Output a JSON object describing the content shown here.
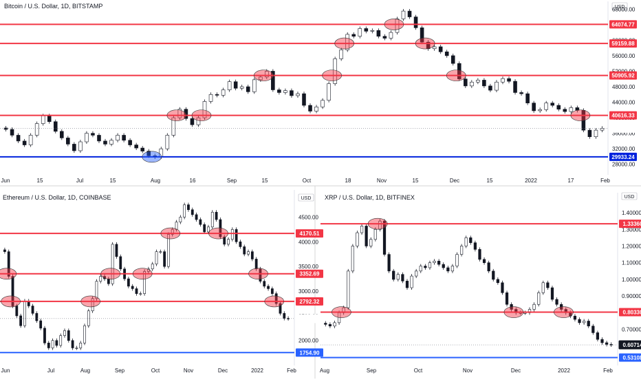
{
  "chart_data": [
    {
      "type": "candlestick",
      "title": "Bitcoin / U.S. Dollar, 1D, BITSTAMP",
      "currency": "USD",
      "ylim": [
        26000,
        70000
      ],
      "y_ticks": [
        "68000.00",
        "64000.00",
        "60000.00",
        "56000.00",
        "52000.00",
        "48000.00",
        "44000.00",
        "40000.00",
        "36000.00",
        "32000.00",
        "28000.00"
      ],
      "x_ticks": [
        "Jun",
        "15",
        "Jul",
        "15",
        "Aug",
        "16",
        "Sep",
        "15",
        "Oct",
        "18",
        "Nov",
        "15",
        "Dec",
        "15",
        "2022",
        "17",
        "Feb"
      ],
      "last_price": "37285.98",
      "levels": [
        {
          "value": "64074.77",
          "color": "#f23645"
        },
        {
          "value": "59159.88",
          "color": "#f23645"
        },
        {
          "value": "50905.92",
          "color": "#f23645"
        },
        {
          "value": "40616.33",
          "color": "#f23645"
        },
        {
          "value": "29933.24",
          "color": "#0022dd"
        }
      ],
      "close_series": [
        37000,
        35500,
        34000,
        33000,
        35500,
        38500,
        40500,
        39000,
        36500,
        34800,
        33200,
        31500,
        33800,
        36000,
        35500,
        34000,
        33200,
        34200,
        35500,
        34200,
        33000,
        32200,
        31400,
        30200,
        29900,
        32000,
        35500,
        40000,
        42200,
        39800,
        38200,
        40000,
        44200,
        46000,
        45800,
        47200,
        49300,
        47600,
        48000,
        46700,
        49800,
        50500,
        52000,
        47200,
        46500,
        47000,
        45700,
        46200,
        43200,
        41700,
        42800,
        44500,
        48800,
        55200,
        57500,
        61500,
        61000,
        63000,
        62300,
        62500,
        61000,
        60500,
        62000,
        65500,
        67500,
        66000,
        63200,
        59500,
        57800,
        58300,
        57000,
        56000,
        54000,
        50000,
        48200,
        49200,
        49700,
        48200,
        47100,
        49200,
        50100,
        49400,
        46500,
        46200,
        43800,
        41800,
        42100,
        43800,
        43200,
        42200,
        41600,
        42600,
        41900,
        36800,
        35100,
        36800,
        37285.98
      ]
    },
    {
      "type": "candlestick",
      "title": "Ethereum / U.S. Dollar, 1D, COINBASE",
      "currency": "USD",
      "ylim": [
        1550,
        5050
      ],
      "y_ticks": [
        "5000.00",
        "4500.00",
        "4000.00",
        "3500.00",
        "3000.00",
        "2500.00",
        "2000.00"
      ],
      "x_ticks": [
        "Jun",
        "Jul",
        "Aug",
        "Sep",
        "Oct",
        "Nov",
        "Dec",
        "2022",
        "Feb"
      ],
      "last_price": "2444.78",
      "levels": [
        {
          "value": "4170.51",
          "color": "#f23645"
        },
        {
          "value": "3352.69",
          "color": "#f23645"
        },
        {
          "value": "2792.32",
          "color": "#f23645"
        },
        {
          "value": "1754.90",
          "color": "#2962ff"
        }
      ],
      "close_series": [
        3800,
        3300,
        2700,
        2500,
        2300,
        2800,
        2700,
        2550,
        2400,
        2250,
        1950,
        1850,
        2000,
        1900,
        2100,
        2200,
        2000,
        1850,
        1850,
        1950,
        2300,
        2600,
        2850,
        3200,
        3300,
        3250,
        3150,
        3950,
        3700,
        3450,
        3250,
        3100,
        3050,
        2950,
        2950,
        3400,
        3450,
        3550,
        3800,
        3800,
        3500,
        4150,
        4250,
        4400,
        4500,
        4750,
        4650,
        4550,
        4450,
        4350,
        4200,
        4300,
        4600,
        4450,
        4100,
        3950,
        4050,
        4250,
        4000,
        3900,
        3750,
        3800,
        3650,
        3450,
        3200,
        3100,
        3050,
        2950,
        2750,
        2550,
        2450,
        2444.78
      ]
    },
    {
      "type": "candlestick",
      "title": "XRP / U.S. Dollar, 1D, BITFINEX",
      "currency": "USD",
      "ylim": [
        0.5,
        1.52
      ],
      "y_ticks": [
        "1.50000",
        "1.40000",
        "1.30000",
        "1.20000",
        "1.10000",
        "1.00000",
        "0.90000",
        "0.80000",
        "0.70000",
        "0.60000"
      ],
      "x_ticks": [
        "Aug",
        "Sep",
        "Oct",
        "Nov",
        "Dec",
        "2022",
        "Feb"
      ],
      "last_price": "0.60714",
      "levels": [
        {
          "value": "1.33360",
          "color": "#f23645"
        },
        {
          "value": "0.80330",
          "color": "#f23645"
        },
        {
          "value": "0.53108",
          "color": "#2962ff"
        }
      ],
      "close_series": [
        0.73,
        0.72,
        0.74,
        0.8,
        0.83,
        1.05,
        1.2,
        1.28,
        1.32,
        1.2,
        1.24,
        1.3,
        1.35,
        1.15,
        1.05,
        1.0,
        1.03,
        0.99,
        0.95,
        1.02,
        1.05,
        1.08,
        1.07,
        1.1,
        1.11,
        1.09,
        1.07,
        1.05,
        1.08,
        1.15,
        1.2,
        1.25,
        1.22,
        1.18,
        1.12,
        1.1,
        1.05,
        1.0,
        0.98,
        0.92,
        0.85,
        0.82,
        0.8,
        0.8,
        0.8,
        0.82,
        0.85,
        0.92,
        0.98,
        0.95,
        0.88,
        0.85,
        0.82,
        0.8,
        0.78,
        0.76,
        0.74,
        0.75,
        0.72,
        0.68,
        0.64,
        0.62,
        0.61,
        0.60714
      ]
    }
  ]
}
